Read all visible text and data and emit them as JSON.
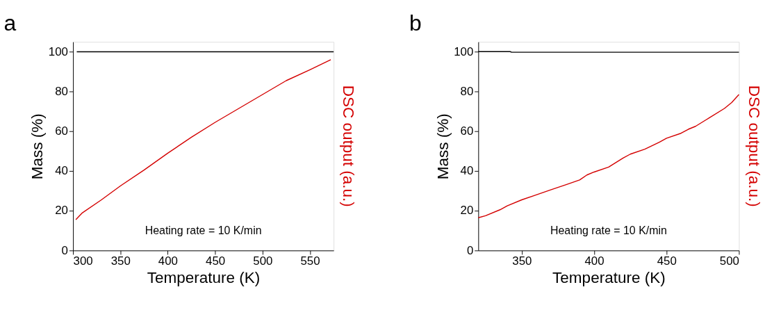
{
  "chart_data": [
    {
      "type": "line",
      "title": "a",
      "xlabel": "Temperature (K)",
      "ylabel": "Mass (%)",
      "y2label": "DSC output (a.u.)",
      "xlim": [
        300,
        575
      ],
      "xticks": [
        300,
        350,
        400,
        450,
        500,
        550
      ],
      "ylim": [
        0,
        105
      ],
      "yticks": [
        0,
        20,
        40,
        60,
        80,
        100
      ],
      "grid": false,
      "line_style": "solid",
      "annotations": [
        "Heating rate = 10 K/min"
      ],
      "series": [
        {
          "color": "#000000",
          "x": [
            304,
            575
          ],
          "values": [
            100,
            100
          ]
        },
        {
          "color": "#d40000",
          "x": [
            303,
            310,
            330,
            350,
            375,
            400,
            425,
            450,
            475,
            500,
            525,
            550,
            572
          ],
          "values": [
            15.5,
            19,
            25.5,
            32.5,
            40.5,
            49,
            57,
            64.5,
            71.5,
            78.5,
            85.5,
            91,
            96
          ]
        }
      ]
    },
    {
      "type": "line",
      "title": "b",
      "xlabel": "Temperature (K)",
      "ylabel": "Mass (%)",
      "y2label": "DSC output (a.u.)",
      "xlim": [
        320,
        500
      ],
      "xticks": [
        350,
        400,
        450,
        500
      ],
      "ylim": [
        0,
        105
      ],
      "yticks": [
        0,
        20,
        40,
        60,
        80,
        100
      ],
      "grid": false,
      "line_style": "solid",
      "annotations": [
        "Heating rate = 10 K/min"
      ],
      "series": [
        {
          "color": "#000000",
          "x": [
            320,
            342,
            343,
            500
          ],
          "values": [
            100.1,
            100.1,
            99.8,
            99.8
          ]
        },
        {
          "color": "#d40000",
          "x": [
            320,
            325,
            335,
            340,
            350,
            360,
            370,
            380,
            390,
            395,
            400,
            410,
            420,
            425,
            435,
            445,
            450,
            460,
            465,
            470,
            480,
            490,
            495,
            500
          ],
          "values": [
            16.5,
            17.5,
            20.5,
            22.5,
            25.5,
            28,
            30.5,
            33,
            35.5,
            38,
            39.5,
            42,
            46.5,
            48.5,
            51,
            54.5,
            56.5,
            59,
            61,
            62.5,
            67,
            71.5,
            74.5,
            78.5
          ]
        }
      ]
    }
  ]
}
